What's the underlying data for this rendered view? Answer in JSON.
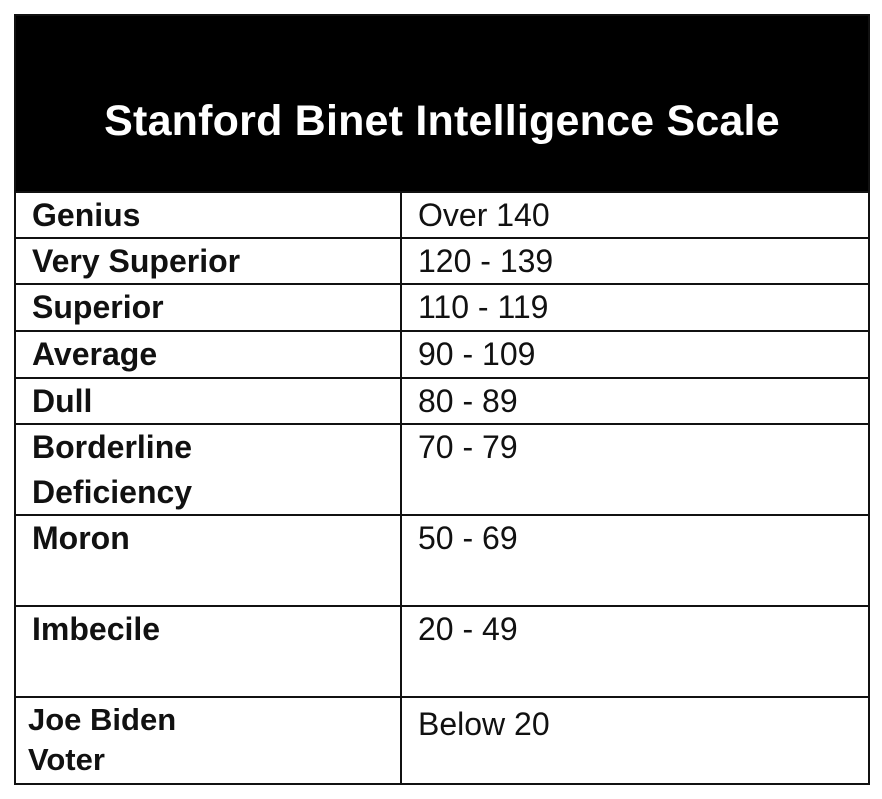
{
  "title": "Stanford Binet Intelligence Scale",
  "rows": [
    {
      "label": "Genius",
      "range": "Over 140"
    },
    {
      "label": "Very Superior",
      "range": "120 - 139"
    },
    {
      "label": "Superior",
      "range": "110 - 119"
    },
    {
      "label": "Average",
      "range": "90 - 109"
    },
    {
      "label": "Dull",
      "range": "80 - 89"
    },
    {
      "label": "Borderline Deficiency",
      "range": "70 - 79"
    },
    {
      "label": "Moron",
      "range": "50 - 69"
    },
    {
      "label": "Imbecile",
      "range": "20 - 49"
    },
    {
      "label": "Joe Biden Voter",
      "range": "Below 20"
    }
  ]
}
